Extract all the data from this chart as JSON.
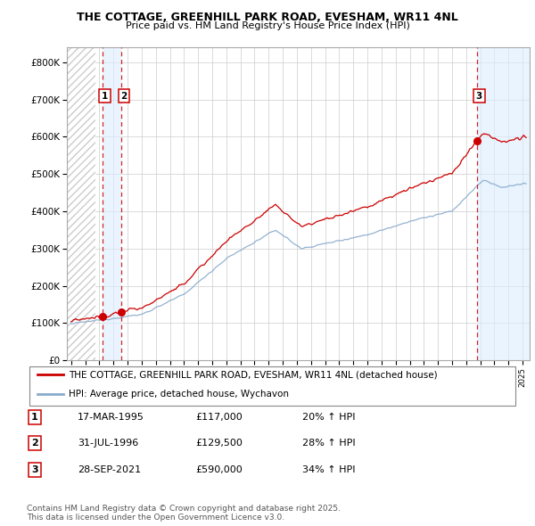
{
  "title_line1": "THE COTTAGE, GREENHILL PARK ROAD, EVESHAM, WR11 4NL",
  "title_line2": "Price paid vs. HM Land Registry's House Price Index (HPI)",
  "background_color": "#ffffff",
  "grid_color": "#cccccc",
  "red_line_color": "#cc0000",
  "blue_line_color": "#88aacc",
  "dashed_line_color": "#cc0000",
  "shade_color": "#ddeeff",
  "hatch_color": "#cccccc",
  "yticks": [
    0,
    100000,
    200000,
    300000,
    400000,
    500000,
    600000,
    700000,
    800000
  ],
  "ytick_labels": [
    "£0",
    "£100K",
    "£200K",
    "£300K",
    "£400K",
    "£500K",
    "£600K",
    "£700K",
    "£800K"
  ],
  "xmin": 1992.7,
  "xmax": 2025.5,
  "ymin": 0,
  "ymax": 840000,
  "hatch_end": 1994.75,
  "sales": [
    {
      "num": "1",
      "date_x": 1995.21,
      "price": 117000
    },
    {
      "num": "2",
      "date_x": 1996.58,
      "price": 129500
    },
    {
      "num": "3",
      "date_x": 2021.74,
      "price": 590000
    }
  ],
  "legend_entries": [
    {
      "color": "#cc0000",
      "label": "THE COTTAGE, GREENHILL PARK ROAD, EVESHAM, WR11 4NL (detached house)"
    },
    {
      "color": "#88aacc",
      "label": "HPI: Average price, detached house, Wychavon"
    }
  ],
  "table_rows": [
    {
      "num": "1",
      "date": "17-MAR-1995",
      "price": "£117,000",
      "hpi": "20% ↑ HPI"
    },
    {
      "num": "2",
      "date": "31-JUL-1996",
      "price": "£129,500",
      "hpi": "28% ↑ HPI"
    },
    {
      "num": "3",
      "date": "28-SEP-2021",
      "price": "£590,000",
      "hpi": "34% ↑ HPI"
    }
  ],
  "footnote": "Contains HM Land Registry data © Crown copyright and database right 2025.\nThis data is licensed under the Open Government Licence v3.0."
}
